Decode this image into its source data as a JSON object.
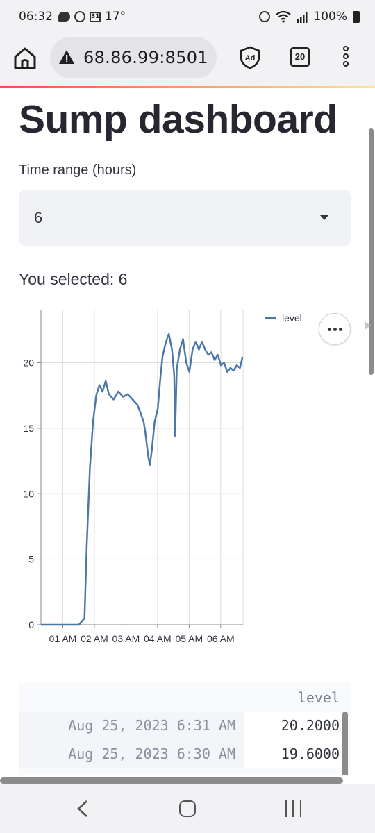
{
  "status_bar": {
    "time": "06:32",
    "temperature": "17°",
    "calendar_day": "31",
    "battery": "100%"
  },
  "browser": {
    "url": "68.86.99:8501",
    "tab_count": "20",
    "ad_badge": "Ad"
  },
  "page": {
    "title": "Sump dashboard",
    "select_label": "Time range (hours)",
    "select_value": "6",
    "selected_text": "You selected: 6"
  },
  "chart_data": {
    "type": "line",
    "x_ticks": [
      "01 AM",
      "02 AM",
      "03 AM",
      "04 AM",
      "05 AM",
      "06 AM"
    ],
    "y_ticks": [
      "0",
      "5",
      "10",
      "15",
      "20"
    ],
    "ylim": [
      0,
      24
    ],
    "legend_position": "top-right",
    "series": [
      {
        "name": "level",
        "color": "#4c78a8",
        "points": [
          [
            0.0,
            0
          ],
          [
            1.2,
            0
          ],
          [
            1.38,
            0.5
          ],
          [
            1.45,
            6
          ],
          [
            1.55,
            12
          ],
          [
            1.65,
            15.5
          ],
          [
            1.75,
            17.5
          ],
          [
            1.85,
            18.3
          ],
          [
            1.95,
            17.8
          ],
          [
            2.05,
            18.6
          ],
          [
            2.15,
            17.6
          ],
          [
            2.3,
            17.2
          ],
          [
            2.45,
            17.8
          ],
          [
            2.6,
            17.4
          ],
          [
            2.75,
            17.6
          ],
          [
            2.9,
            17.2
          ],
          [
            3.05,
            16.8
          ],
          [
            3.15,
            16.2
          ],
          [
            3.25,
            15.5
          ],
          [
            3.3,
            14.8
          ],
          [
            3.35,
            13.8
          ],
          [
            3.4,
            12.8
          ],
          [
            3.45,
            12.2
          ],
          [
            3.52,
            13.5
          ],
          [
            3.6,
            15.5
          ],
          [
            3.7,
            16.5
          ],
          [
            3.78,
            18.8
          ],
          [
            3.85,
            20.5
          ],
          [
            3.95,
            21.5
          ],
          [
            4.05,
            22.2
          ],
          [
            4.15,
            21.0
          ],
          [
            4.22,
            19.0
          ],
          [
            4.25,
            14.4
          ],
          [
            4.3,
            19.5
          ],
          [
            4.4,
            21.0
          ],
          [
            4.5,
            21.8
          ],
          [
            4.6,
            20.0
          ],
          [
            4.7,
            19.3
          ],
          [
            4.8,
            21.0
          ],
          [
            4.9,
            21.6
          ],
          [
            5.0,
            21.0
          ],
          [
            5.1,
            21.6
          ],
          [
            5.2,
            21.0
          ],
          [
            5.3,
            20.6
          ],
          [
            5.4,
            20.8
          ],
          [
            5.5,
            20.2
          ],
          [
            5.6,
            20.6
          ],
          [
            5.7,
            19.8
          ],
          [
            5.8,
            20.0
          ],
          [
            5.9,
            19.3
          ],
          [
            6.0,
            19.6
          ],
          [
            6.1,
            19.4
          ],
          [
            6.2,
            19.8
          ],
          [
            6.3,
            19.6
          ],
          [
            6.38,
            20.4
          ]
        ]
      }
    ]
  },
  "table": {
    "column": "level",
    "rows": [
      {
        "time": "Aug 25, 2023 6:31 AM",
        "level": "20.2000"
      },
      {
        "time": "Aug 25, 2023 6:30 AM",
        "level": "19.6000"
      }
    ]
  }
}
